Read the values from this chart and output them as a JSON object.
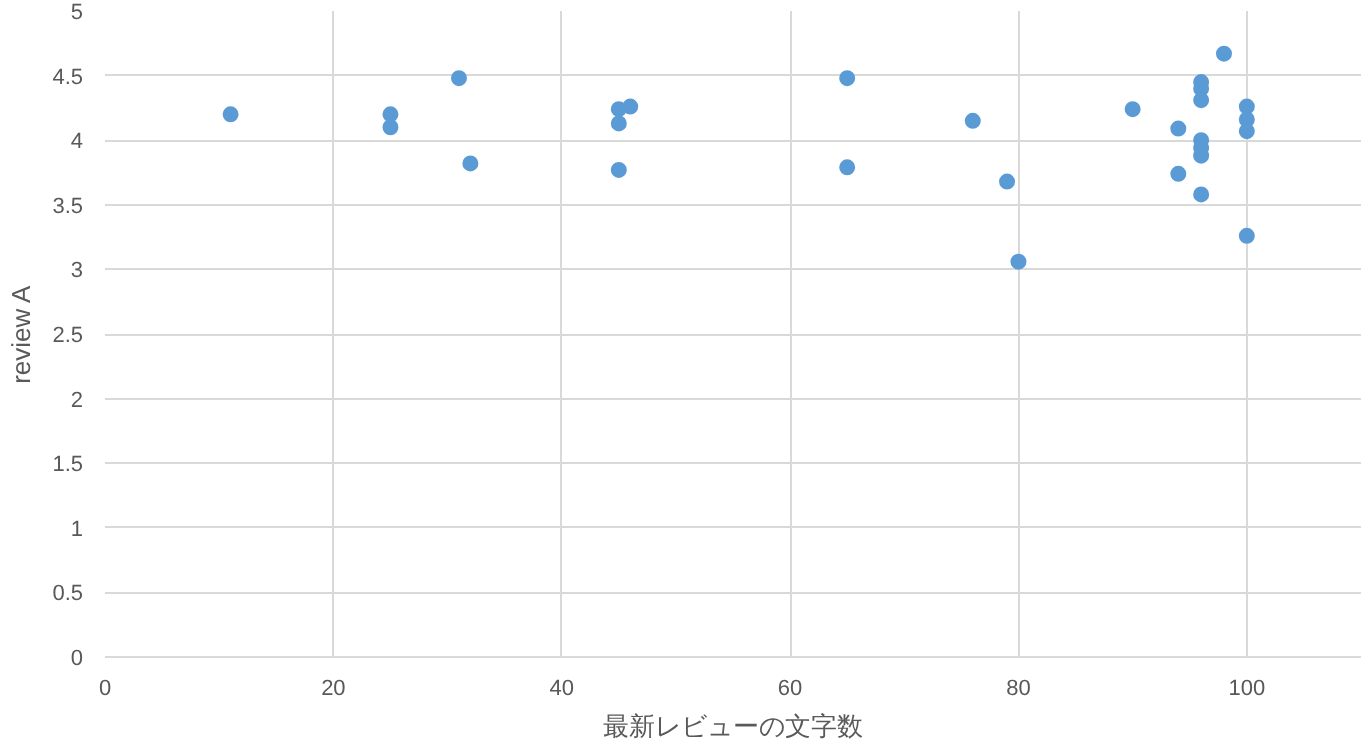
{
  "chart_data": {
    "type": "scatter",
    "xlabel": "最新レビューの文字数",
    "ylabel": "review A",
    "x": [
      11,
      25,
      25,
      31,
      32,
      45,
      45,
      45,
      46,
      65,
      65,
      76,
      79,
      80,
      90,
      94,
      94,
      96,
      96,
      96,
      96,
      96,
      96,
      96,
      98,
      100,
      100,
      100,
      100
    ],
    "series": [
      {
        "color": "#5b9bd5",
        "values": [
          4.2,
          4.2,
          4.1,
          4.48,
          3.82,
          4.24,
          4.13,
          3.77,
          4.26,
          4.48,
          3.79,
          4.15,
          3.68,
          3.06,
          4.24,
          4.09,
          3.74,
          4.45,
          4.4,
          4.31,
          4.0,
          3.94,
          3.88,
          3.58,
          4.67,
          4.26,
          4.16,
          4.07,
          3.26
        ]
      }
    ],
    "xlim": [
      0,
      110
    ],
    "xticks": [
      0,
      20,
      40,
      60,
      80,
      100
    ],
    "ylim": [
      0,
      5
    ],
    "yticks": [
      0,
      0.5,
      1,
      1.5,
      2,
      2.5,
      3,
      3.5,
      4,
      4.5,
      5
    ],
    "grid": true,
    "marker": "circle"
  }
}
